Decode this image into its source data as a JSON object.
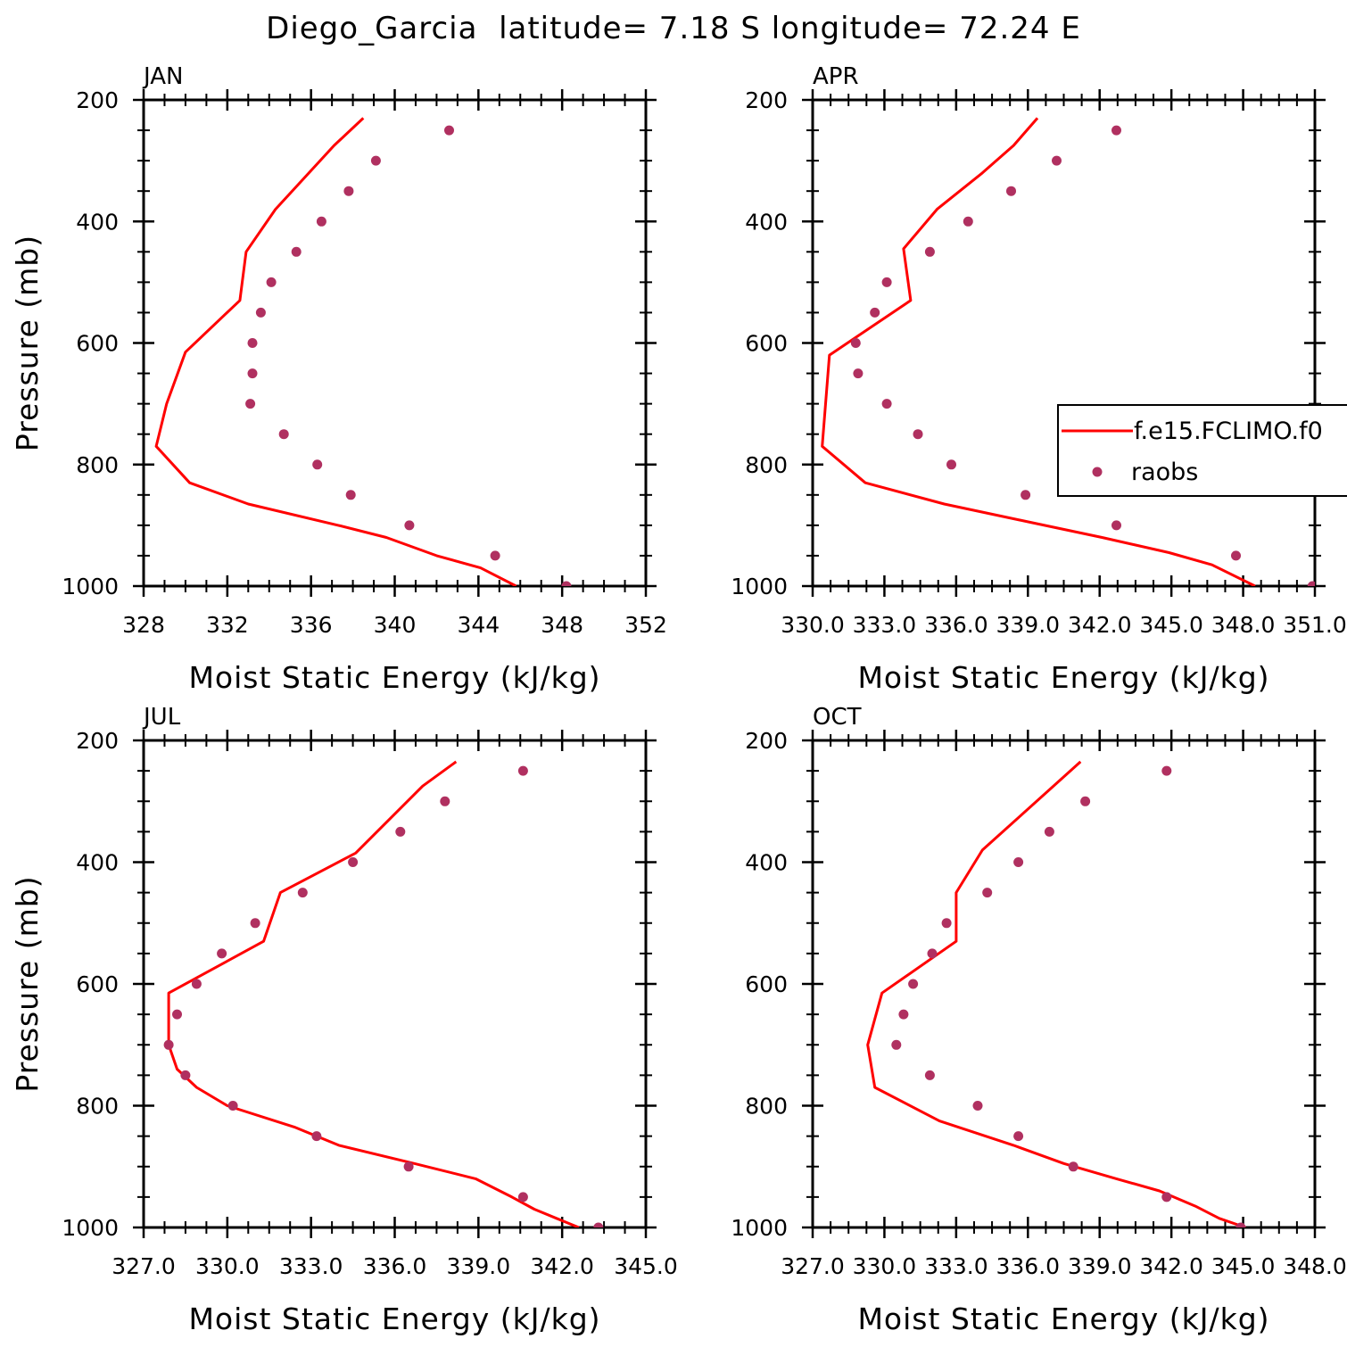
{
  "title": "Diego_Garcia  latitude= 7.18 S longitude= 72.24 E",
  "colors": {
    "model_line": "#ff0000",
    "raobs_points": "#b03060",
    "axes": "#000000"
  },
  "legend": {
    "model_label": "f.e15.FCLIMO.f0",
    "obs_label": "raobs"
  },
  "chart_data": [
    {
      "type": "line",
      "panel": "JAN",
      "title": "JAN",
      "xlabel": "Moist Static Energy (kJ/kg)",
      "ylabel": "Pressure (mb)",
      "xlim": [
        328,
        352
      ],
      "ylim": [
        1000,
        200
      ],
      "y_reversed": true,
      "x_ticks": [
        "328",
        "332",
        "336",
        "340",
        "344",
        "348",
        "352"
      ],
      "x_tick_values": [
        328,
        332,
        336,
        340,
        344,
        348,
        352
      ],
      "y_ticks": [
        "200",
        "400",
        "600",
        "800",
        "1000"
      ],
      "y_tick_values": [
        200,
        400,
        600,
        800,
        1000
      ],
      "series": [
        {
          "name": "f.e15.FCLIMO.f0",
          "kind": "line",
          "x": [
            345.8,
            344.1,
            342.0,
            339.6,
            337.3,
            333.0,
            330.2,
            328.6,
            329.1,
            330.0,
            332.6,
            332.9,
            334.3,
            337.1,
            338.5
          ],
          "y": [
            1000,
            970,
            950,
            920,
            900,
            865,
            830,
            770,
            700,
            615,
            530,
            450,
            380,
            275,
            230
          ]
        },
        {
          "name": "raobs",
          "kind": "scatter",
          "x": [
            348.2,
            344.8,
            340.7,
            337.9,
            336.3,
            334.7,
            333.1,
            333.2,
            333.2,
            333.6,
            334.1,
            335.3,
            336.5,
            337.8,
            339.1,
            342.6
          ],
          "y": [
            1000,
            950,
            900,
            850,
            800,
            750,
            700,
            650,
            600,
            550,
            500,
            450,
            400,
            350,
            300,
            250
          ]
        }
      ]
    },
    {
      "type": "line",
      "panel": "APR",
      "title": "APR",
      "xlabel": "Moist Static Energy (kJ/kg)",
      "ylabel": "",
      "xlim": [
        330.0,
        351.0
      ],
      "ylim": [
        1000,
        200
      ],
      "y_reversed": true,
      "x_ticks": [
        "330.0",
        "333.0",
        "336.0",
        "339.0",
        "342.0",
        "345.0",
        "348.0",
        "351.0"
      ],
      "x_tick_values": [
        330,
        333,
        336,
        339,
        342,
        345,
        348,
        351
      ],
      "y_ticks": [
        "200",
        "400",
        "600",
        "800",
        "1000"
      ],
      "y_tick_values": [
        200,
        400,
        600,
        800,
        1000
      ],
      "show_legend": true,
      "series": [
        {
          "name": "f.e15.FCLIMO.f0",
          "kind": "line",
          "x": [
            348.5,
            346.7,
            344.9,
            342.1,
            339.1,
            335.5,
            332.2,
            330.4,
            330.7,
            334.1,
            333.8,
            335.2,
            337.1,
            338.4,
            339.4
          ],
          "y": [
            1000,
            965,
            945,
            920,
            895,
            865,
            830,
            770,
            620,
            530,
            445,
            380,
            320,
            275,
            230
          ]
        },
        {
          "name": "raobs",
          "kind": "scatter",
          "x": [
            350.9,
            347.7,
            342.7,
            338.9,
            335.8,
            334.4,
            333.1,
            331.9,
            331.8,
            332.6,
            333.1,
            334.9,
            336.5,
            338.3,
            340.2,
            342.7
          ],
          "y": [
            1000,
            950,
            900,
            850,
            800,
            750,
            700,
            650,
            600,
            550,
            500,
            450,
            400,
            350,
            300,
            250
          ]
        }
      ]
    },
    {
      "type": "line",
      "panel": "JUL",
      "title": "JUL",
      "xlabel": "Moist Static Energy (kJ/kg)",
      "ylabel": "Pressure (mb)",
      "xlim": [
        327.0,
        345.0
      ],
      "ylim": [
        1000,
        200
      ],
      "y_reversed": true,
      "x_ticks": [
        "327.0",
        "330.0",
        "333.0",
        "336.0",
        "339.0",
        "342.0",
        "345.0"
      ],
      "x_tick_values": [
        327,
        330,
        333,
        336,
        339,
        342,
        345
      ],
      "y_ticks": [
        "200",
        "400",
        "600",
        "800",
        "1000"
      ],
      "y_tick_values": [
        200,
        400,
        600,
        800,
        1000
      ],
      "series": [
        {
          "name": "f.e15.FCLIMO.f0",
          "kind": "line",
          "x": [
            342.6,
            341.8,
            341.0,
            340.2,
            338.9,
            336.7,
            334.0,
            332.4,
            330.0,
            328.9,
            328.2,
            327.9,
            327.9,
            331.3,
            331.9,
            334.6,
            337.0,
            338.2
          ],
          "y": [
            1000,
            985,
            970,
            950,
            920,
            895,
            865,
            835,
            800,
            770,
            740,
            700,
            615,
            530,
            450,
            385,
            275,
            235
          ]
        },
        {
          "name": "raobs",
          "kind": "scatter",
          "x": [
            343.3,
            340.6,
            336.5,
            333.2,
            330.2,
            328.5,
            327.9,
            328.2,
            328.9,
            329.8,
            331.0,
            332.7,
            334.5,
            336.2,
            337.8,
            340.6
          ],
          "y": [
            1000,
            950,
            900,
            850,
            800,
            750,
            700,
            650,
            600,
            550,
            500,
            450,
            400,
            350,
            300,
            250
          ]
        }
      ]
    },
    {
      "type": "line",
      "panel": "OCT",
      "title": "OCT",
      "xlabel": "Moist Static Energy (kJ/kg)",
      "ylabel": "",
      "xlim": [
        327.0,
        348.0
      ],
      "ylim": [
        1000,
        200
      ],
      "y_reversed": true,
      "x_ticks": [
        "327.0",
        "330.0",
        "333.0",
        "336.0",
        "339.0",
        "342.0",
        "345.0",
        "348.0"
      ],
      "x_tick_values": [
        327,
        330,
        333,
        336,
        339,
        342,
        345,
        348
      ],
      "y_ticks": [
        "200",
        "400",
        "600",
        "800",
        "1000"
      ],
      "y_tick_values": [
        200,
        400,
        600,
        800,
        1000
      ],
      "series": [
        {
          "name": "f.e15.FCLIMO.f0",
          "kind": "line",
          "x": [
            345.1,
            344.0,
            343.0,
            341.5,
            339.7,
            337.5,
            335.4,
            332.3,
            329.6,
            329.3,
            329.9,
            333.0,
            333.0,
            334.1,
            338.2
          ],
          "y": [
            1000,
            985,
            965,
            940,
            920,
            895,
            865,
            825,
            770,
            700,
            615,
            530,
            450,
            380,
            235
          ]
        },
        {
          "name": "raobs",
          "kind": "scatter",
          "x": [
            344.9,
            341.8,
            337.9,
            335.6,
            333.9,
            331.9,
            330.5,
            330.8,
            331.2,
            332.0,
            332.6,
            334.3,
            335.6,
            336.9,
            338.4,
            341.8
          ],
          "y": [
            1000,
            950,
            900,
            850,
            800,
            750,
            700,
            650,
            600,
            550,
            500,
            450,
            400,
            350,
            300,
            250
          ]
        }
      ]
    }
  ]
}
